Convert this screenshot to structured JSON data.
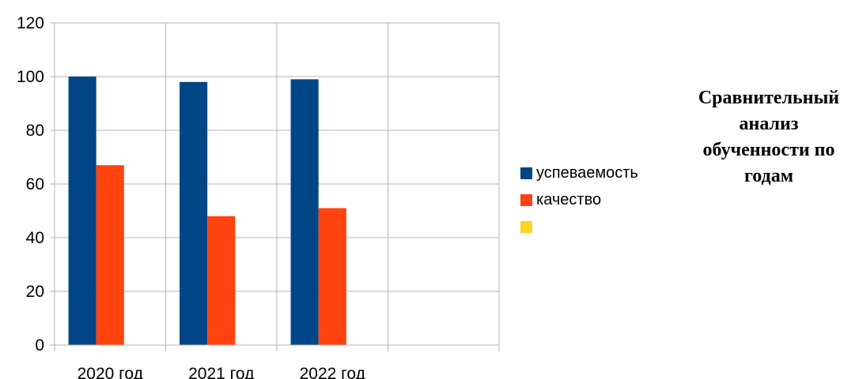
{
  "chart_data": {
    "type": "bar",
    "title": "Сравнительный анализ обученности по годам",
    "categories": [
      "2020 год",
      "2021 год",
      "2022 год",
      ""
    ],
    "series": [
      {
        "name": "успеваемость",
        "color": "#004586",
        "values": [
          100,
          98,
          99,
          null
        ]
      },
      {
        "name": "качество",
        "color": "#ff420e",
        "values": [
          67,
          48,
          51,
          null
        ]
      },
      {
        "name": "",
        "color": "#ffd320",
        "values": [
          null,
          null,
          null,
          null
        ]
      }
    ],
    "ylim": [
      0,
      120
    ],
    "yticks": [
      0,
      20,
      40,
      60,
      80,
      100,
      120
    ],
    "grid": true,
    "legend_position": "right"
  }
}
